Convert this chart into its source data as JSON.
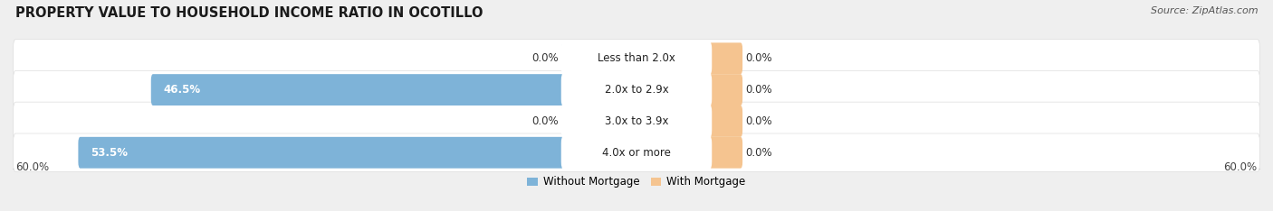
{
  "title": "PROPERTY VALUE TO HOUSEHOLD INCOME RATIO IN OCOTILLO",
  "source": "Source: ZipAtlas.com",
  "categories": [
    "Less than 2.0x",
    "2.0x to 2.9x",
    "3.0x to 3.9x",
    "4.0x or more"
  ],
  "without_mortgage": [
    0.0,
    46.5,
    0.0,
    53.5
  ],
  "with_mortgage": [
    0.0,
    0.0,
    0.0,
    0.0
  ],
  "bar_color_blue": "#7EB3D8",
  "bar_color_blue_light": "#A8CCE8",
  "bar_color_orange": "#F5C490",
  "bg_color": "#EFEFEF",
  "row_bg_color": "#FFFFFF",
  "axis_limit": 60.0,
  "legend_labels": [
    "Without Mortgage",
    "With Mortgage"
  ],
  "title_fontsize": 10.5,
  "source_fontsize": 8,
  "label_fontsize": 8.5,
  "tick_fontsize": 8.5,
  "small_bar_width": 7.0,
  "orange_bar_width": 10.0
}
